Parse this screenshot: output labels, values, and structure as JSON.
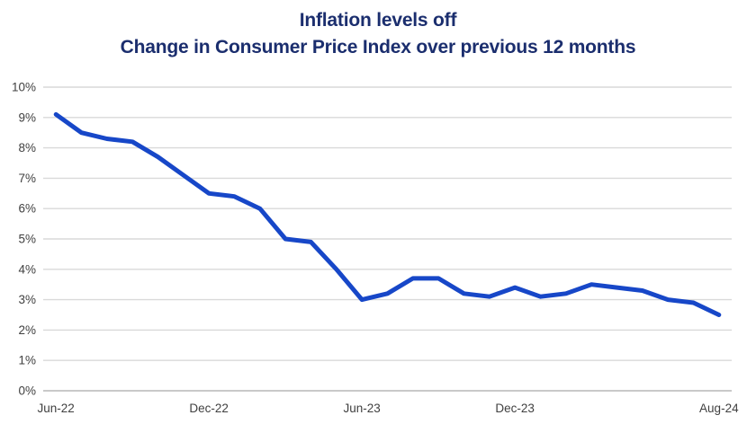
{
  "chart_data": {
    "type": "line",
    "title": "Inflation levels off",
    "subtitle": "Change in Consumer Price Index over previous 12 months",
    "x": [
      "Jun-22",
      "Jul-22",
      "Aug-22",
      "Sep-22",
      "Oct-22",
      "Nov-22",
      "Dec-22",
      "Jan-23",
      "Feb-23",
      "Mar-23",
      "Apr-23",
      "May-23",
      "Jun-23",
      "Jul-23",
      "Aug-23",
      "Sep-23",
      "Oct-23",
      "Nov-23",
      "Dec-23",
      "Jan-24",
      "Feb-24",
      "Mar-24",
      "Apr-24",
      "May-24",
      "Jun-24",
      "Jul-24",
      "Aug-24"
    ],
    "values": [
      9.1,
      8.5,
      8.3,
      8.2,
      7.7,
      7.1,
      6.5,
      6.4,
      6.0,
      5.0,
      4.9,
      4.0,
      3.0,
      3.2,
      3.7,
      3.7,
      3.2,
      3.1,
      3.4,
      3.1,
      3.2,
      3.5,
      3.4,
      3.3,
      3.0,
      2.9,
      2.5
    ],
    "x_tick_labels": [
      "Jun-22",
      "Dec-22",
      "Jun-23",
      "Dec-23",
      "Aug-24"
    ],
    "x_tick_indices": [
      0,
      6,
      12,
      18,
      26
    ],
    "y_tick_labels": [
      "0%",
      "1%",
      "2%",
      "3%",
      "4%",
      "5%",
      "6%",
      "7%",
      "8%",
      "9%",
      "10%"
    ],
    "y_tick_values": [
      0,
      1,
      2,
      3,
      4,
      5,
      6,
      7,
      8,
      9,
      10
    ],
    "ylim": [
      0,
      10
    ],
    "grid": true,
    "legend": "none",
    "colors": {
      "line": "#1747c8",
      "grid": "#d9d9d9",
      "baseline": "#c9c9c9",
      "axis_label": "#404040",
      "title": "#1b2e6e",
      "background": "#ffffff"
    }
  }
}
